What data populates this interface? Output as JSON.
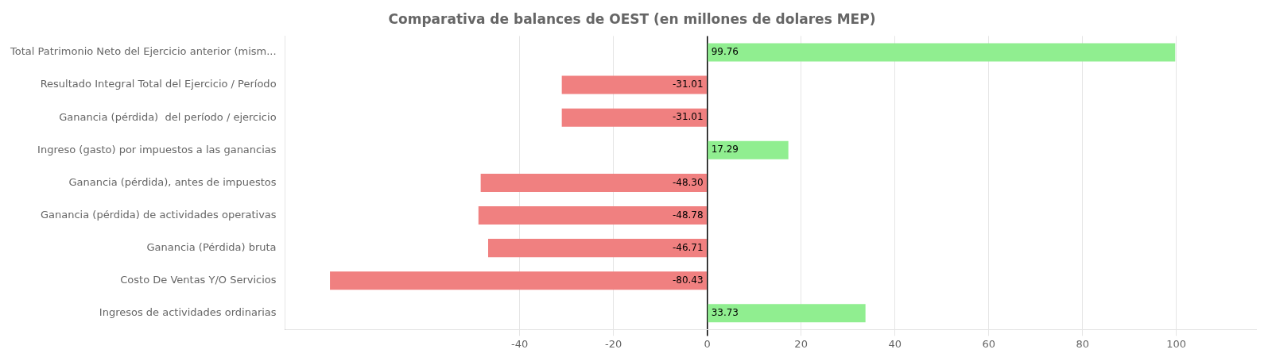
{
  "chart_data": {
    "type": "bar",
    "orientation": "horizontal",
    "title": "Comparativa de balances de OEST (en millones de dolares MEP)",
    "categories": [
      "Ingresos de actividades ordinarias",
      "Costo De Ventas Y/O Servicios",
      "Ganancia (Pérdida) bruta",
      "Ganancia (pérdida) de actividades operativas",
      "Ganancia (pérdida), antes de impuestos",
      "Ingreso (gasto) por impuestos a las ganancias",
      "Ganancia (pérdida)  del período / ejercicio",
      "Resultado Integral Total del Ejercicio / Período",
      "Total Patrimonio Neto del Ejercicio anterior (mism..."
    ],
    "values": [
      33.73,
      -80.43,
      -46.71,
      -48.78,
      -48.3,
      17.29,
      -31.01,
      -31.01,
      99.76
    ],
    "value_labels": [
      "33.73",
      "-80.43",
      "-46.71",
      "-48.78",
      "-48.30",
      "17.29",
      "-31.01",
      "-31.01",
      "99.76"
    ],
    "data_labels": true,
    "colors": [
      "#90EE90",
      "#F08080",
      "#F08080",
      "#F08080",
      "#F08080",
      "#90EE90",
      "#F08080",
      "#F08080",
      "#90EE90"
    ],
    "xlim": [
      -90,
      117
    ],
    "xticks": [
      -40,
      -20,
      0,
      20,
      40,
      60,
      80,
      100
    ],
    "grid": true
  }
}
